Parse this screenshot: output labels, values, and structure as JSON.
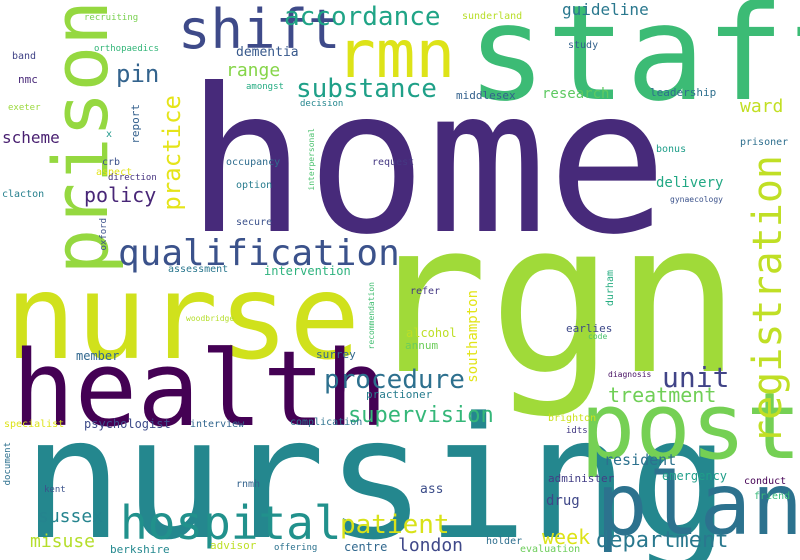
{
  "words": {
    "home": {
      "text": "home",
      "color": "#472a7a"
    },
    "rgn": {
      "text": "rgn",
      "color": "#a0da39"
    },
    "nursing": {
      "text": "nursing",
      "color": "#24878e"
    },
    "nurse": {
      "text": "nurse",
      "color": "#d0e11c"
    },
    "staff": {
      "text": "staff",
      "color": "#3cbb75"
    },
    "health": {
      "text": "health",
      "color": "#440154"
    },
    "post": {
      "text": "post",
      "color": "#75d054"
    },
    "plan": {
      "text": "plan",
      "color": "#2c728e"
    },
    "prison": {
      "text": "prison",
      "color": "#95d840"
    },
    "rmn": {
      "text": "rmn",
      "color": "#dde318"
    },
    "shift": {
      "text": "shift",
      "color": "#3e4a89"
    },
    "hospital": {
      "text": "hospital",
      "color": "#21918c"
    },
    "registration": {
      "text": "registration",
      "color": "#c0df25"
    },
    "qualification": {
      "text": "qualification",
      "color": "#3b528b"
    },
    "accordance": {
      "text": "accordance",
      "color": "#20a486"
    },
    "substance": {
      "text": "substance",
      "color": "#1fa088"
    },
    "procedure": {
      "text": "procedure",
      "color": "#2d708e"
    },
    "patient": {
      "text": "patient",
      "color": "#d8e219"
    },
    "practice": {
      "text": "practice",
      "color": "#e5e419"
    },
    "unit": {
      "text": "unit",
      "color": "#414487"
    },
    "pin": {
      "text": "pin",
      "color": "#33638d"
    },
    "department": {
      "text": "department",
      "color": "#2a788e"
    },
    "supervision": {
      "text": "supervision",
      "color": "#35b779"
    },
    "treatment": {
      "text": "treatment",
      "color": "#70cf57"
    },
    "policy": {
      "text": "policy",
      "color": "#482677"
    },
    "range": {
      "text": "range",
      "color": "#86d549"
    },
    "week": {
      "text": "week",
      "color": "#dde318"
    },
    "ward": {
      "text": "ward",
      "color": "#c2df23"
    },
    "sussex": {
      "text": "sussex",
      "color": "#25848e"
    },
    "misuse": {
      "text": "misuse",
      "color": "#b5de2b"
    },
    "london": {
      "text": "london",
      "color": "#3f4889"
    },
    "scheme": {
      "text": "scheme",
      "color": "#481f70"
    },
    "guideline": {
      "text": "guideline",
      "color": "#2a788e"
    },
    "dementia": {
      "text": "dementia",
      "color": "#38598c"
    },
    "research": {
      "text": "research",
      "color": "#5ec962"
    },
    "resident": {
      "text": "resident",
      "color": "#2c718e"
    },
    "delivery": {
      "text": "delivery",
      "color": "#22a884"
    },
    "drug": {
      "text": "drug",
      "color": "#3f4788"
    },
    "southampton": {
      "text": "southampton",
      "color": "#e2e418"
    },
    "psychologist": {
      "text": "psychologist",
      "color": "#3e4c8a"
    },
    "centre": {
      "text": "centre",
      "color": "#31688e"
    },
    "emergency": {
      "text": "emergency",
      "color": "#1f9e89"
    },
    "member": {
      "text": "member",
      "color": "#31678e"
    },
    "surrey": {
      "text": "surrey",
      "color": "#31678e"
    },
    "practioner": {
      "text": "practioner",
      "color": "#287d8e"
    },
    "middlesex": {
      "text": "middlesex",
      "color": "#34618d"
    },
    "leadership": {
      "text": "leadership",
      "color": "#2e6f8e"
    },
    "ass": {
      "text": "ass",
      "color": "#3d4e8a"
    },
    "alcohol": {
      "text": "alcohol",
      "color": "#bddf26"
    },
    "annum": {
      "text": "annum",
      "color": "#6ccd5a"
    },
    "report": {
      "text": "report",
      "color": "#34608d"
    },
    "sunderland": {
      "text": "sunderland",
      "color": "#b8de29"
    },
    "recruiting": {
      "text": "recruiting",
      "color": "#7ad151"
    },
    "orthopaedics": {
      "text": "orthopaedics",
      "color": "#34b679"
    },
    "band": {
      "text": "band",
      "color": "#404387"
    },
    "nmc": {
      "text": "nmc",
      "color": "#482878"
    },
    "exeter": {
      "text": "exeter",
      "color": "#9bd93c"
    },
    "x": {
      "text": "x",
      "color": "#1f988b"
    },
    "crb": {
      "text": "crb",
      "color": "#3b518b"
    },
    "aspect": {
      "text": "aspect",
      "color": "#e2e418"
    },
    "direction": {
      "text": "direction",
      "color": "#46337f"
    },
    "clacton": {
      "text": "clacton",
      "color": "#27808e"
    },
    "oxford": {
      "text": "oxford",
      "color": "#3b518b"
    },
    "amongst": {
      "text": "amongst",
      "color": "#25ac82"
    },
    "decision": {
      "text": "decision",
      "color": "#24868e"
    },
    "study": {
      "text": "study",
      "color": "#33628d"
    },
    "prisoner": {
      "text": "prisoner",
      "color": "#2e6f8e"
    },
    "bonus": {
      "text": "bonus",
      "color": "#1f9e89"
    },
    "gynaecology": {
      "text": "gynaecology",
      "color": "#3b528b"
    },
    "request": {
      "text": "request",
      "color": "#453882"
    },
    "occupancy": {
      "text": "occupancy",
      "color": "#2f6c8e"
    },
    "interpersonal": {
      "text": "interpersonal",
      "color": "#4ac16d"
    },
    "option": {
      "text": "option",
      "color": "#287c8e"
    },
    "secure": {
      "text": "secure",
      "color": "#3b518b"
    },
    "assessment": {
      "text": "assessment",
      "color": "#2a778e"
    },
    "intervention": {
      "text": "intervention",
      "color": "#2db27d"
    },
    "woodbridge": {
      "text": "woodbridge",
      "color": "#b5de2b"
    },
    "recommendation": {
      "text": "recommendation",
      "color": "#42be71"
    },
    "refer": {
      "text": "refer",
      "color": "#443983"
    },
    "durham": {
      "text": "durham",
      "color": "#26ad81"
    },
    "earlies": {
      "text": "earlies",
      "color": "#3e4989"
    },
    "code": {
      "text": "code",
      "color": "#4ac16d"
    },
    "diagnosis": {
      "text": "diagnosis",
      "color": "#471063"
    },
    "brighton": {
      "text": "brighton",
      "color": "#cde11d"
    },
    "idts": {
      "text": "idts",
      "color": "#443a83"
    },
    "specialist": {
      "text": "specialist",
      "color": "#dde318"
    },
    "interview": {
      "text": "interview",
      "color": "#31668e"
    },
    "complication": {
      "text": "complication",
      "color": "#2c728e"
    },
    "document": {
      "text": "document",
      "color": "#2d708e"
    },
    "kent": {
      "text": "kent",
      "color": "#3b528b"
    },
    "rnmh": {
      "text": "rnmh",
      "color": "#33638d"
    },
    "administer": {
      "text": "administer",
      "color": "#433e85"
    },
    "conduct": {
      "text": "conduct",
      "color": "#440154"
    },
    "friend": {
      "text": "friend",
      "color": "#37b878"
    },
    "berkshire": {
      "text": "berkshire",
      "color": "#23888e"
    },
    "advisor": {
      "text": "advisor",
      "color": "#bddf26"
    },
    "offering": {
      "text": "offering",
      "color": "#2c728e"
    },
    "holder": {
      "text": "holder",
      "color": "#2e6e8e"
    },
    "evaluation": {
      "text": "evaluation",
      "color": "#6ccd5a"
    }
  }
}
